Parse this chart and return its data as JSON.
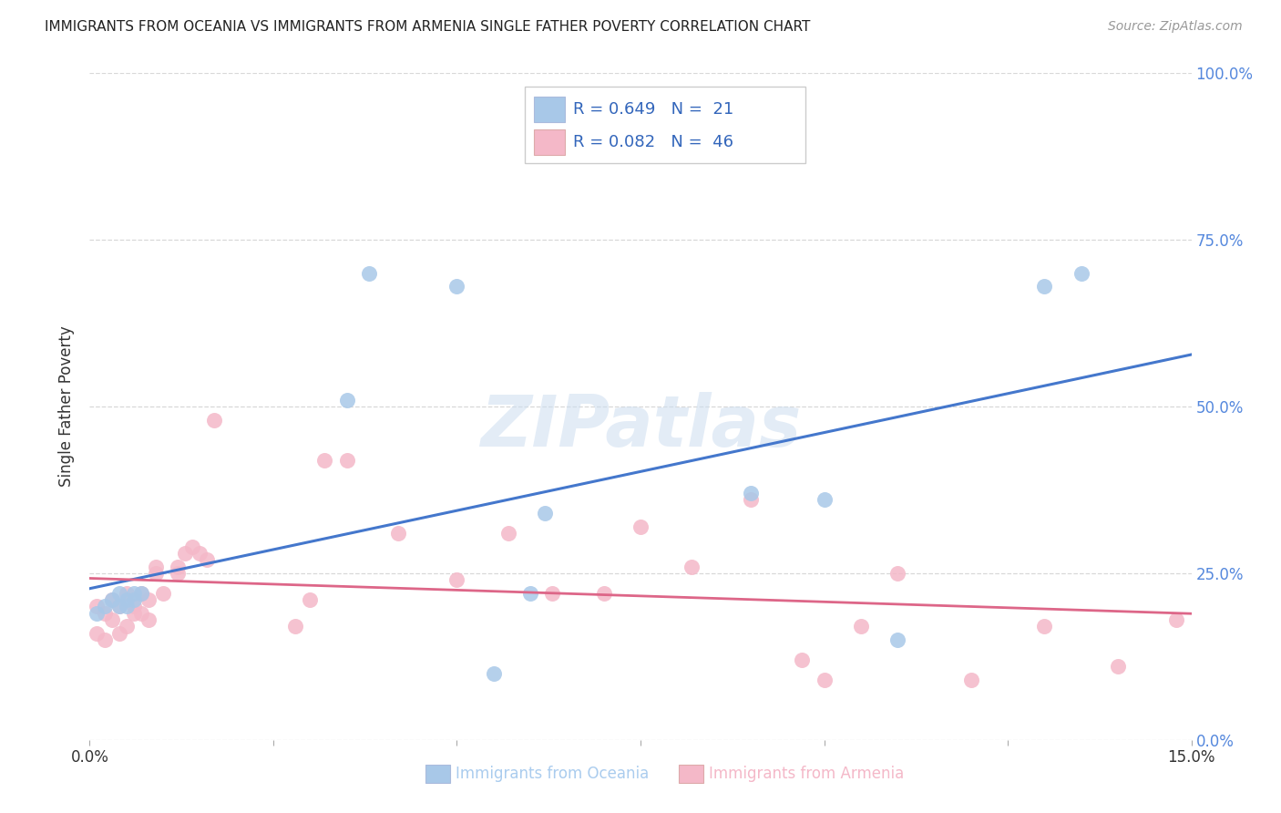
{
  "title": "IMMIGRANTS FROM OCEANIA VS IMMIGRANTS FROM ARMENIA SINGLE FATHER POVERTY CORRELATION CHART",
  "source": "Source: ZipAtlas.com",
  "ylabel": "Single Father Poverty",
  "xlim": [
    0,
    0.15
  ],
  "ylim": [
    0,
    1.0
  ],
  "background_color": "#ffffff",
  "grid_color": "#d8d8d8",
  "watermark": "ZIPatlas",
  "series1_color": "#a8c8e8",
  "series2_color": "#f4b8c8",
  "line1_color": "#4477cc",
  "line2_color": "#dd6688",
  "series1_x": [
    0.001,
    0.002,
    0.003,
    0.004,
    0.004,
    0.005,
    0.005,
    0.006,
    0.006,
    0.007,
    0.035,
    0.038,
    0.05,
    0.055,
    0.06,
    0.062,
    0.09,
    0.1,
    0.11,
    0.13,
    0.135
  ],
  "series1_y": [
    0.19,
    0.2,
    0.21,
    0.2,
    0.22,
    0.21,
    0.2,
    0.22,
    0.21,
    0.22,
    0.51,
    0.7,
    0.68,
    0.1,
    0.22,
    0.34,
    0.37,
    0.36,
    0.15,
    0.68,
    0.7
  ],
  "series2_x": [
    0.001,
    0.001,
    0.002,
    0.002,
    0.003,
    0.003,
    0.004,
    0.004,
    0.005,
    0.005,
    0.006,
    0.006,
    0.007,
    0.007,
    0.008,
    0.008,
    0.009,
    0.009,
    0.01,
    0.012,
    0.012,
    0.013,
    0.014,
    0.015,
    0.016,
    0.017,
    0.028,
    0.03,
    0.032,
    0.035,
    0.042,
    0.05,
    0.057,
    0.063,
    0.07,
    0.075,
    0.082,
    0.09,
    0.097,
    0.1,
    0.105,
    0.11,
    0.12,
    0.13,
    0.14,
    0.148
  ],
  "series2_y": [
    0.2,
    0.16,
    0.19,
    0.15,
    0.21,
    0.18,
    0.2,
    0.16,
    0.22,
    0.17,
    0.2,
    0.19,
    0.22,
    0.19,
    0.21,
    0.18,
    0.26,
    0.25,
    0.22,
    0.26,
    0.25,
    0.28,
    0.29,
    0.28,
    0.27,
    0.48,
    0.17,
    0.21,
    0.42,
    0.42,
    0.31,
    0.24,
    0.31,
    0.22,
    0.22,
    0.32,
    0.26,
    0.36,
    0.12,
    0.09,
    0.17,
    0.25,
    0.09,
    0.17,
    0.11,
    0.18
  ]
}
